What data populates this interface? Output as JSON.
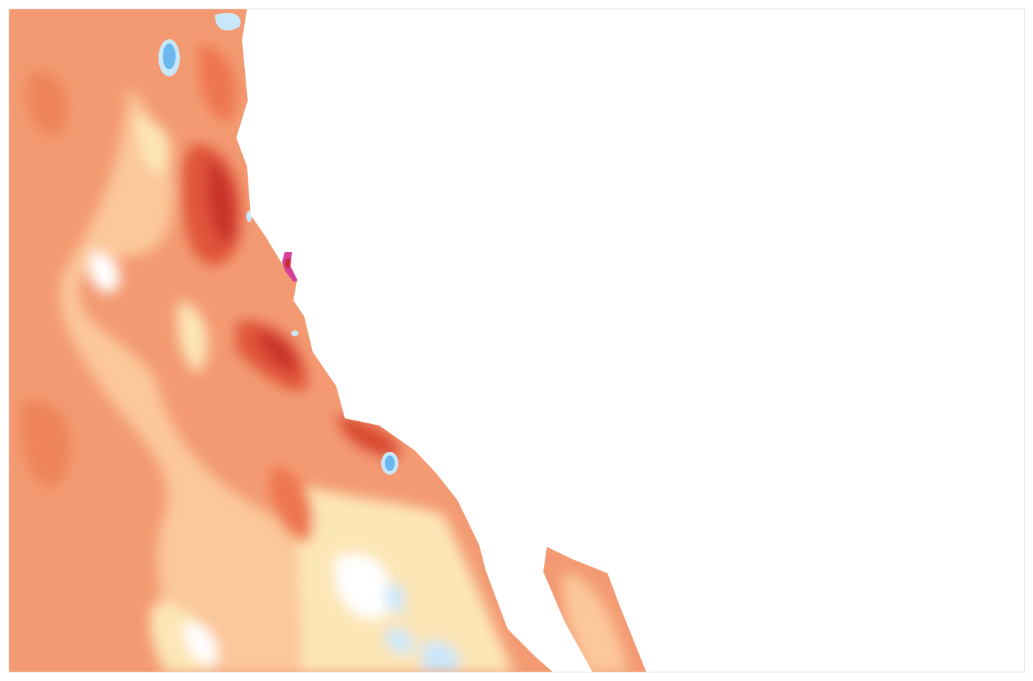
{
  "map": {
    "type": "anomaly-heatmap",
    "palette": {
      "strong_warm": "#c8312b",
      "warm": "#ef7a52",
      "moderate_warm": "#f5a27a",
      "mild_warm": "#fbc89a",
      "slight_warm": "#fde6b6",
      "neutral": "#ffffff",
      "slight_cool": "#c9e7fb",
      "cool": "#6bb8ef",
      "extreme_warm": "#d63f9a"
    }
  }
}
